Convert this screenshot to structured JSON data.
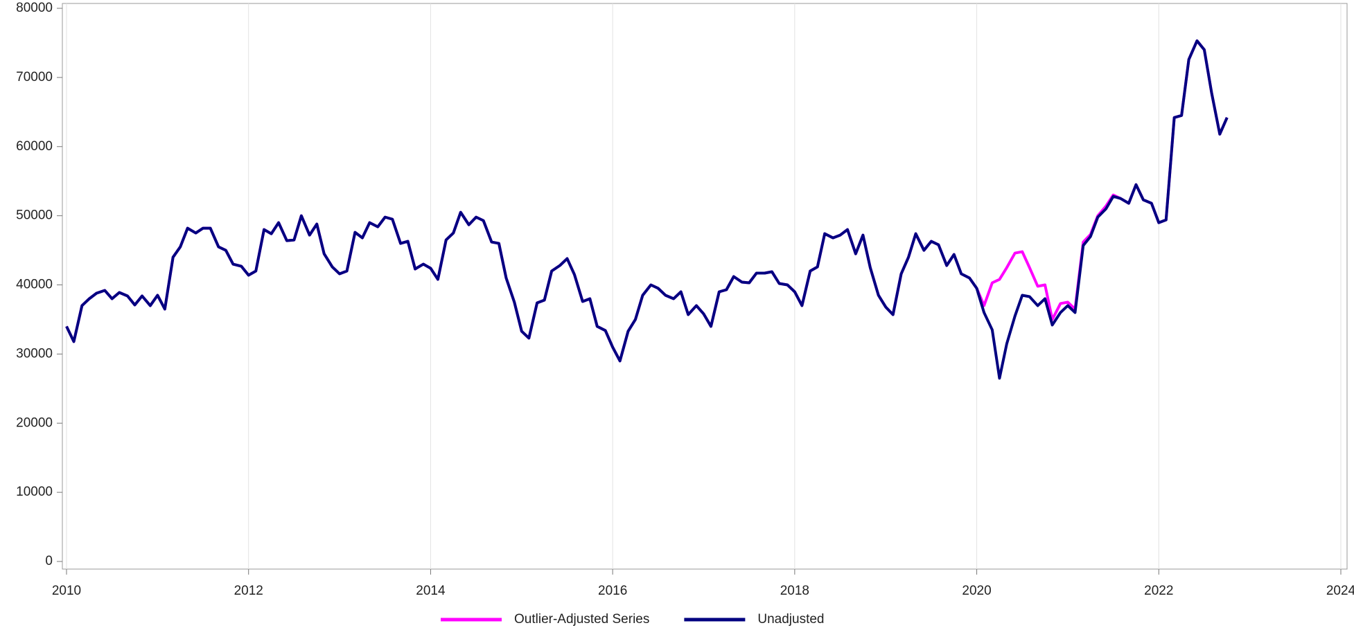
{
  "chart_data": {
    "type": "line",
    "x": [
      2010.0,
      2010.08,
      2010.17,
      2010.25,
      2010.33,
      2010.42,
      2010.5,
      2010.58,
      2010.67,
      2010.75,
      2010.83,
      2010.92,
      2011.0,
      2011.08,
      2011.17,
      2011.25,
      2011.33,
      2011.42,
      2011.5,
      2011.58,
      2011.67,
      2011.75,
      2011.83,
      2011.92,
      2012.0,
      2012.08,
      2012.17,
      2012.25,
      2012.33,
      2012.42,
      2012.5,
      2012.58,
      2012.67,
      2012.75,
      2012.83,
      2012.92,
      2013.0,
      2013.08,
      2013.17,
      2013.25,
      2013.33,
      2013.42,
      2013.5,
      2013.58,
      2013.67,
      2013.75,
      2013.83,
      2013.92,
      2014.0,
      2014.08,
      2014.17,
      2014.25,
      2014.33,
      2014.42,
      2014.5,
      2014.58,
      2014.67,
      2014.75,
      2014.83,
      2014.92,
      2015.0,
      2015.08,
      2015.17,
      2015.25,
      2015.33,
      2015.42,
      2015.5,
      2015.58,
      2015.67,
      2015.75,
      2015.83,
      2015.92,
      2016.0,
      2016.08,
      2016.17,
      2016.25,
      2016.33,
      2016.42,
      2016.5,
      2016.58,
      2016.67,
      2016.75,
      2016.83,
      2016.92,
      2017.0,
      2017.08,
      2017.17,
      2017.25,
      2017.33,
      2017.42,
      2017.5,
      2017.58,
      2017.67,
      2017.75,
      2017.83,
      2017.92,
      2018.0,
      2018.08,
      2018.17,
      2018.25,
      2018.33,
      2018.42,
      2018.5,
      2018.58,
      2018.67,
      2018.75,
      2018.83,
      2018.92,
      2019.0,
      2019.08,
      2019.17,
      2019.25,
      2019.33,
      2019.42,
      2019.5,
      2019.58,
      2019.67,
      2019.75,
      2019.83,
      2019.92,
      2020.0,
      2020.08,
      2020.17,
      2020.25,
      2020.33,
      2020.42,
      2020.5,
      2020.58,
      2020.67,
      2020.75,
      2020.83,
      2020.92,
      2021.0,
      2021.08,
      2021.17,
      2021.25,
      2021.33,
      2021.42,
      2021.5,
      2021.58,
      2021.67,
      2021.75,
      2021.83,
      2021.92,
      2022.0,
      2022.08,
      2022.17,
      2022.25,
      2022.33,
      2022.42,
      2022.5,
      2022.58,
      2022.67,
      2022.75
    ],
    "series": [
      {
        "name": "Outlier-Adjusted Series",
        "color": "#ff00ff",
        "values": [
          34000,
          31800,
          37000,
          38000,
          38800,
          39200,
          38000,
          38900,
          38400,
          37100,
          38400,
          37000,
          38500,
          36500,
          44000,
          45500,
          48200,
          47500,
          48200,
          48200,
          45500,
          45000,
          43000,
          42700,
          41400,
          42000,
          48000,
          47400,
          49000,
          46400,
          46500,
          50000,
          47200,
          48800,
          44500,
          42600,
          41600,
          42000,
          47600,
          46800,
          49000,
          48400,
          49800,
          49500,
          46000,
          46300,
          42300,
          43000,
          42400,
          40800,
          46500,
          47500,
          50500,
          48700,
          49800,
          49300,
          46200,
          46000,
          41000,
          37500,
          33300,
          32300,
          37400,
          37800,
          42000,
          42800,
          43800,
          41500,
          37600,
          38000,
          34000,
          33400,
          31000,
          29000,
          33300,
          35000,
          38500,
          40000,
          39500,
          38500,
          38000,
          39000,
          35700,
          37000,
          35800,
          34000,
          39000,
          39300,
          41200,
          40400,
          40300,
          41700,
          41700,
          41900,
          40200,
          40000,
          39000,
          37000,
          42000,
          42600,
          47400,
          46800,
          47200,
          48000,
          44500,
          47200,
          42500,
          38500,
          36800,
          35700,
          41600,
          44000,
          47400,
          45000,
          46300,
          45800,
          42800,
          44400,
          41600,
          41000,
          39500,
          37000,
          40300,
          40800,
          42500,
          44600,
          44800,
          42500,
          39800,
          40000,
          35000,
          37300,
          37500,
          36500,
          46200,
          47300,
          50000,
          51400,
          53000,
          52500,
          51800,
          54500,
          52300,
          51800,
          49000,
          49400,
          64200,
          64500,
          72600,
          75300,
          74000,
          67800,
          61800,
          64200
        ]
      },
      {
        "name": "Unadjusted",
        "color": "#000080",
        "values": [
          34000,
          31800,
          37000,
          38000,
          38800,
          39200,
          38000,
          38900,
          38400,
          37100,
          38400,
          37000,
          38500,
          36500,
          44000,
          45500,
          48200,
          47500,
          48200,
          48200,
          45500,
          45000,
          43000,
          42700,
          41400,
          42000,
          48000,
          47400,
          49000,
          46400,
          46500,
          50000,
          47200,
          48800,
          44500,
          42600,
          41600,
          42000,
          47600,
          46800,
          49000,
          48400,
          49800,
          49500,
          46000,
          46300,
          42300,
          43000,
          42400,
          40800,
          46500,
          47500,
          50500,
          48700,
          49800,
          49300,
          46200,
          46000,
          41000,
          37500,
          33300,
          32300,
          37400,
          37800,
          42000,
          42800,
          43800,
          41500,
          37600,
          38000,
          34000,
          33400,
          31000,
          29000,
          33300,
          35000,
          38500,
          40000,
          39500,
          38500,
          38000,
          39000,
          35700,
          37000,
          35800,
          34000,
          39000,
          39300,
          41200,
          40400,
          40300,
          41700,
          41700,
          41900,
          40200,
          40000,
          39000,
          37000,
          42000,
          42600,
          47400,
          46800,
          47200,
          48000,
          44500,
          47200,
          42500,
          38500,
          36800,
          35700,
          41600,
          44000,
          47400,
          45000,
          46300,
          45800,
          42800,
          44400,
          41600,
          41000,
          39500,
          36000,
          33500,
          26500,
          31500,
          35500,
          38500,
          38300,
          37000,
          38000,
          34200,
          36000,
          37000,
          36000,
          45700,
          47000,
          49800,
          51000,
          52800,
          52500,
          51800,
          54500,
          52300,
          51800,
          49000,
          49400,
          64200,
          64500,
          72600,
          75300,
          74000,
          67800,
          61800,
          64200
        ]
      }
    ],
    "xlim": [
      2010,
      2024
    ],
    "xticks": [
      2010,
      2012,
      2014,
      2016,
      2018,
      2020,
      2022,
      2024
    ],
    "ylim": [
      0,
      80000
    ],
    "yticks": [
      0,
      10000,
      20000,
      30000,
      40000,
      50000,
      60000,
      70000,
      80000
    ],
    "xgrid": true,
    "legend": "bottom"
  }
}
